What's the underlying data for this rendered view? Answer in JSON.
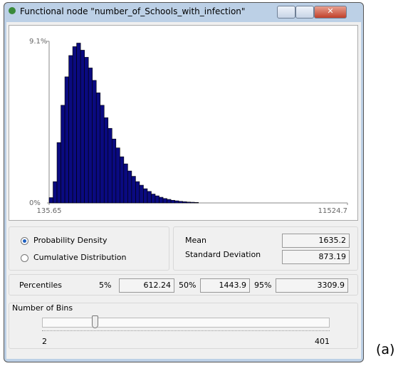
{
  "window": {
    "title": "Functional node \"number_of_Schools_with_infection\""
  },
  "chart_data": {
    "type": "histogram",
    "bins": [
      135.65,
      285.65,
      435.65,
      585.65,
      735.65,
      885.65,
      1035.65,
      1185.65,
      1335.65,
      1485.65,
      1635.65,
      1785.65,
      1935.65,
      2085.65,
      2235.65,
      2385.65,
      2535.65,
      2685.65,
      2835.65,
      2985.65,
      3135.65,
      3285.65,
      3435.65,
      3585.65,
      3735.65,
      3885.65,
      4035.65,
      4185.65,
      4335.65,
      4485.65,
      4635.65,
      4785.65,
      4935.65,
      5085.65,
      5235.65,
      5385.65,
      5535.65,
      5685.65,
      5835.65
    ],
    "values": [
      0.3,
      1.2,
      3.4,
      5.5,
      7.1,
      8.3,
      8.8,
      9.0,
      8.6,
      8.2,
      7.6,
      6.9,
      6.2,
      5.5,
      4.8,
      4.2,
      3.6,
      3.1,
      2.6,
      2.2,
      1.8,
      1.5,
      1.2,
      1.0,
      0.8,
      0.65,
      0.5,
      0.4,
      0.32,
      0.25,
      0.2,
      0.15,
      0.12,
      0.09,
      0.07,
      0.05,
      0.04,
      0.03
    ],
    "color": "#0a0a80",
    "xlim": [
      135.65,
      11524.7
    ],
    "xticks": [
      135.65,
      11524.7
    ],
    "ylim": [
      0,
      9.1
    ],
    "yticks": [
      {
        "value": 9.1,
        "label": "9.1%"
      },
      {
        "value": 0,
        "label": "0%"
      }
    ]
  },
  "options": {
    "probability_density": "Probability Density",
    "cumulative_distribution": "Cumulative Distribution"
  },
  "stats": {
    "mean_label": "Mean",
    "mean": 1635.2,
    "sd_label": "Standard Deviation",
    "sd": 873.19
  },
  "percentiles": {
    "label": "Percentiles",
    "items": [
      {
        "label": "5%",
        "value": 612.24
      },
      {
        "label": "50%",
        "value": 1443.9
      },
      {
        "label": "95%",
        "value": 3309.9
      }
    ]
  },
  "bins_slider": {
    "label": "Number of Bins",
    "min": 2,
    "max": 401,
    "value": 76
  },
  "caption": "(a)"
}
